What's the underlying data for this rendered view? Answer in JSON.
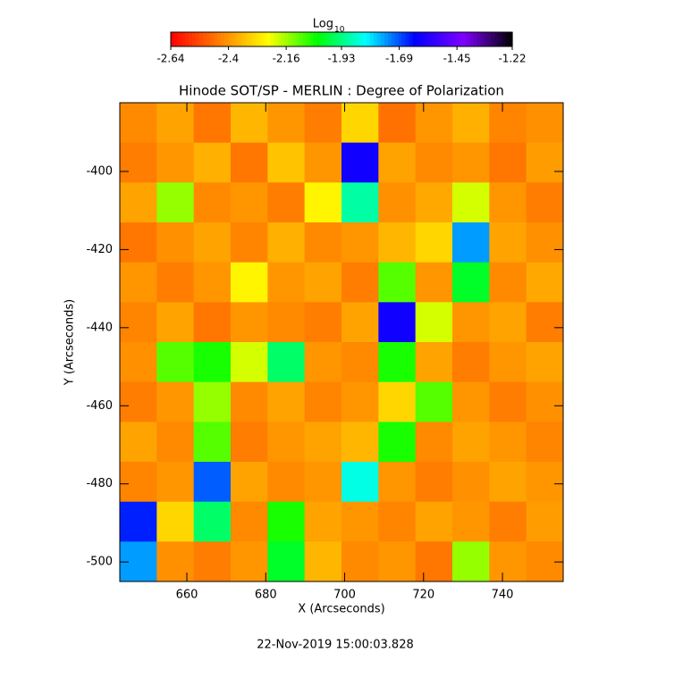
{
  "chart_data": {
    "type": "heatmap",
    "title": "Hinode SOT/SP - MERLIN : Degree of Polarization",
    "colorbar_label": "Log",
    "colorbar_label_sub": "10",
    "clim": [
      -2.64,
      -1.22
    ],
    "cticks": [
      -2.64,
      -2.4,
      -2.16,
      -1.93,
      -1.69,
      -1.45,
      -1.22
    ],
    "colormap": [
      "#ff0000",
      "#ff7f00",
      "#ffff00",
      "#00ff00",
      "#00ffff",
      "#0000ff",
      "#7f00ff",
      "#000000"
    ],
    "x_label": "X (Arcseconds)",
    "y_label": "Y (Arcseconds)",
    "xlim": [
      643,
      755.4
    ],
    "ylim": [
      -505,
      -382.4
    ],
    "xticks": [
      660,
      680,
      700,
      720,
      740
    ],
    "yticks": [
      -400,
      -420,
      -440,
      -460,
      -480,
      -500
    ],
    "z": [
      [
        -2.42,
        -2.38,
        -2.45,
        -2.35,
        -2.4,
        -2.44,
        -2.3,
        -2.46,
        -2.4,
        -2.36,
        -2.43,
        -2.41
      ],
      [
        -2.44,
        -2.4,
        -2.36,
        -2.45,
        -2.33,
        -2.4,
        -1.6,
        -2.38,
        -2.42,
        -2.4,
        -2.45,
        -2.39
      ],
      [
        -2.38,
        -2.15,
        -2.42,
        -2.4,
        -2.44,
        -2.25,
        -1.9,
        -2.41,
        -2.37,
        -2.2,
        -2.4,
        -2.44
      ],
      [
        -2.45,
        -2.41,
        -2.38,
        -2.43,
        -2.36,
        -2.42,
        -2.4,
        -2.35,
        -2.3,
        -1.75,
        -2.38,
        -2.41
      ],
      [
        -2.4,
        -2.44,
        -2.4,
        -2.25,
        -2.4,
        -2.38,
        -2.44,
        -2.1,
        -2.4,
        -2.0,
        -2.42,
        -2.37
      ],
      [
        -2.43,
        -2.38,
        -2.45,
        -2.4,
        -2.42,
        -2.44,
        -2.38,
        -1.6,
        -2.2,
        -2.4,
        -2.38,
        -2.44
      ],
      [
        -2.41,
        -2.1,
        -2.05,
        -2.2,
        -1.95,
        -2.4,
        -2.42,
        -2.05,
        -2.38,
        -2.44,
        -2.4,
        -2.38
      ],
      [
        -2.44,
        -2.4,
        -2.15,
        -2.42,
        -2.38,
        -2.43,
        -2.4,
        -2.3,
        -2.1,
        -2.4,
        -2.44,
        -2.41
      ],
      [
        -2.38,
        -2.42,
        -2.1,
        -2.44,
        -2.4,
        -2.38,
        -2.35,
        -2.05,
        -2.42,
        -2.38,
        -2.4,
        -2.43
      ],
      [
        -2.43,
        -2.4,
        -1.7,
        -2.38,
        -2.42,
        -2.4,
        -1.85,
        -2.4,
        -2.44,
        -2.41,
        -2.38,
        -2.4
      ],
      [
        -1.65,
        -2.3,
        -1.95,
        -2.42,
        -2.05,
        -2.38,
        -2.4,
        -2.43,
        -2.38,
        -2.4,
        -2.44,
        -2.39
      ],
      [
        -1.75,
        -2.41,
        -2.44,
        -2.4,
        -2.0,
        -2.35,
        -2.42,
        -2.4,
        -2.45,
        -2.15,
        -2.4,
        -2.42
      ]
    ],
    "footer": "22-Nov-2019 15:00:03.828"
  }
}
